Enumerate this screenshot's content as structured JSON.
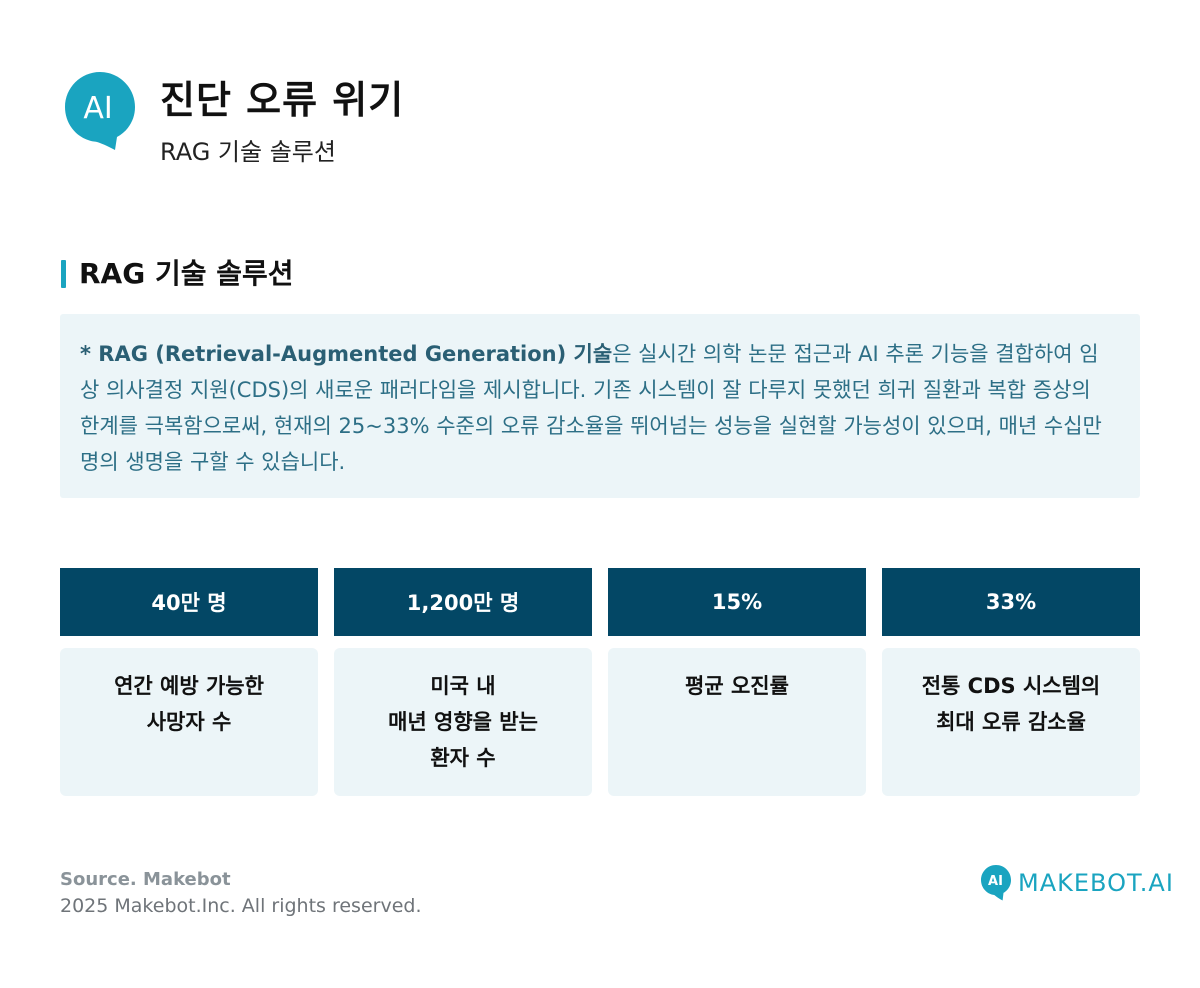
{
  "header": {
    "logo_text": "AI",
    "title": "진단 오류 위기",
    "subtitle": "RAG 기술 솔루션"
  },
  "section": {
    "title": "RAG 기술 솔루션"
  },
  "description": {
    "bold": "* RAG (Retrieval-Augmented Generation) 기술",
    "text": "은 실시간 의학 논문 접근과 AI 추론 기능을 결합하여 임상 의사결정 지원(CDS)의 새로운 패러다임을 제시합니다. 기존 시스템이 잘 다루지 못했던 희귀 질환과 복합 증상의 한계를 극복함으로써, 현재의 25~33% 수준의 오류 감소율을 뛰어넘는 성능을 실현할 가능성이 있으며, 매년 수십만 명의 생명을 구할 수 있습니다."
  },
  "stats": [
    {
      "value": "40만 명",
      "lines": [
        "연간 예방 가능한",
        "사망자 수"
      ]
    },
    {
      "value": "1,200만 명",
      "lines": [
        "미국 내",
        "매년 영향을 받는",
        "환자 수"
      ]
    },
    {
      "value": "15%",
      "lines": [
        "평균 오진률"
      ]
    },
    {
      "value": "33%",
      "lines": [
        "전통 CDS 시스템의",
        "최대 오류 감소율"
      ]
    }
  ],
  "footer": {
    "source": "Source. Makebot",
    "copyright": "2025 Makebot.Inc. All rights reserved.",
    "brand_icon_text": "AI",
    "brand_name": "MAKEBOT.AI"
  },
  "colors": {
    "accent": "#1aa4c0",
    "stat_header": "#034765",
    "panel_bg": "#ecf5f8",
    "desc_text": "#2d6f86"
  }
}
